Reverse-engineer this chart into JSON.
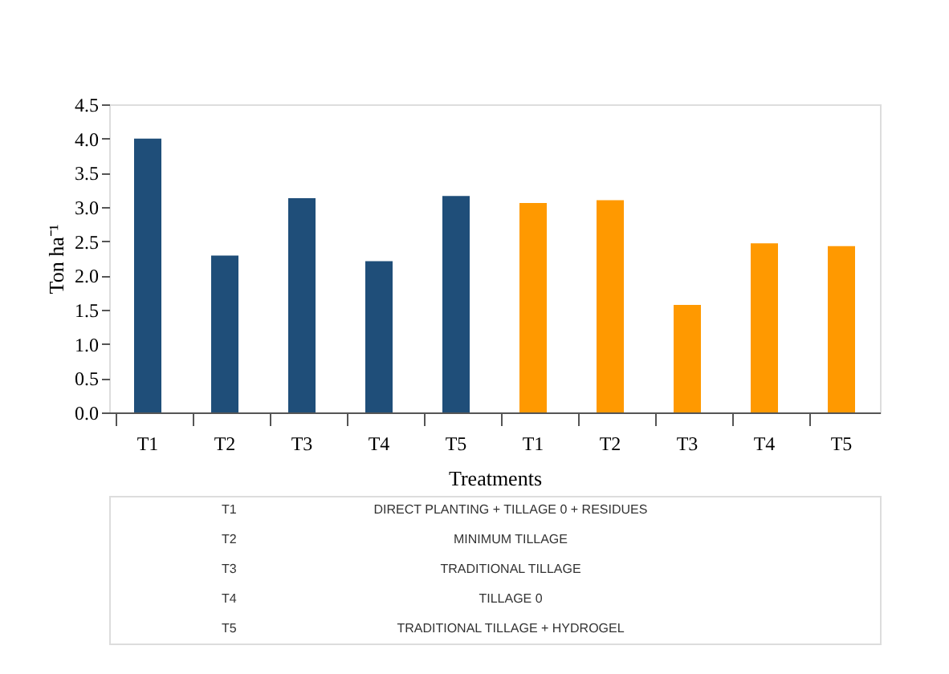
{
  "chart_data": {
    "type": "bar",
    "categories": [
      "T1",
      "T2",
      "T3",
      "T4",
      "T5",
      "T1",
      "T2",
      "T3",
      "T4",
      "T5"
    ],
    "values": [
      4.0,
      2.29,
      3.13,
      2.21,
      3.16,
      3.06,
      3.1,
      1.57,
      2.47,
      2.43
    ],
    "colors": [
      "#1f4e79",
      "#1f4e79",
      "#1f4e79",
      "#1f4e79",
      "#1f4e79",
      "#ff9900",
      "#ff9900",
      "#ff9900",
      "#ff9900",
      "#ff9900"
    ],
    "xlabel": "Treatments",
    "ylabel": "Ton ha⁻¹",
    "ylim": [
      0,
      4.5
    ],
    "yticks": [
      {
        "value": 0,
        "label": "0.0"
      },
      {
        "value": 0.5,
        "label": "0.5"
      },
      {
        "value": 1,
        "label": "1.0"
      },
      {
        "value": 1.5,
        "label": "1.5"
      },
      {
        "value": 2,
        "label": "2.0"
      },
      {
        "value": 2.5,
        "label": "2.5"
      },
      {
        "value": 3,
        "label": "3.0"
      },
      {
        "value": 3.5,
        "label": "3.5"
      },
      {
        "value": 4,
        "label": "4.0"
      },
      {
        "value": 4.5,
        "label": "4.5"
      }
    ],
    "grid": false,
    "legend": false,
    "annotations": [
      "T1",
      "DIRECT PLANTING +  TILLAGE 0 + RESIDUES",
      "T2",
      "MINIMUM TILLAGE",
      "T3",
      "TRADITIONAL TILLAGE",
      "T4",
      "TILLAGE 0",
      "T5",
      "TRADITIONAL TILLAGE + HYDROGEL"
    ]
  }
}
